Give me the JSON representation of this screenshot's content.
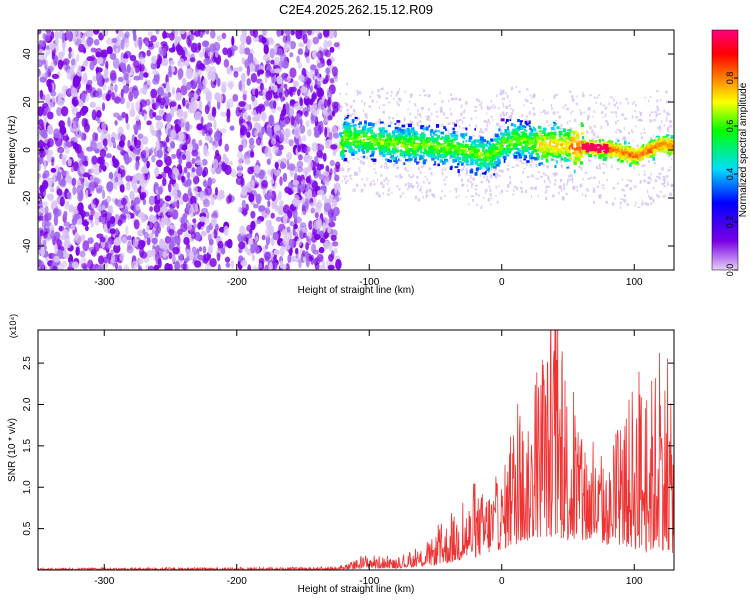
{
  "figure": {
    "title": "C2E4.2025.262.15.12.R09"
  },
  "chart_data": [
    {
      "type": "heatmap",
      "title": "C2E4.2025.262.15.12.R09",
      "xlabel": "Height of straight line (km)",
      "ylabel": "Frequency (Hz)",
      "xlim": [
        -350,
        130
      ],
      "ylim": [
        -50,
        50
      ],
      "xticks": [
        -300,
        -200,
        -100,
        0,
        100
      ],
      "yticks": [
        -40,
        -20,
        0,
        20,
        40
      ],
      "colorbar": {
        "label": "Normalized spectral amplitude",
        "range": [
          0,
          1
        ],
        "ticks": [
          0.0,
          0.2,
          0.4,
          0.6,
          0.8
        ],
        "colors": [
          "#e6d2f7",
          "#7b00e6",
          "#0000ff",
          "#00ddff",
          "#00ff00",
          "#ffff00",
          "#ff8000",
          "#ff0000",
          "#ff0080"
        ]
      },
      "regions": [
        {
          "name": "broadband noise",
          "x_range": [
            -350,
            -123
          ],
          "freq_range": [
            -50,
            50
          ],
          "amplitude": 0.15
        },
        {
          "name": "narrowband signal",
          "x_range": [
            -123,
            130
          ],
          "center_hz": [
            [
              -120,
              6
            ],
            [
              -80,
              3
            ],
            [
              -40,
              2
            ],
            [
              -10,
              -2
            ],
            [
              0,
              3
            ],
            [
              10,
              5
            ],
            [
              30,
              3
            ],
            [
              60,
              2
            ],
            [
              80,
              1
            ],
            [
              100,
              -2
            ],
            [
              120,
              3
            ],
            [
              130,
              2
            ]
          ],
          "amplitude": 0.9
        }
      ]
    },
    {
      "type": "line",
      "xlabel": "Height of straight line (km)",
      "ylabel": "SNR (10 * v/v)",
      "y_multiplier": "(x10⁴)",
      "xlim": [
        -350,
        130
      ],
      "ylim": [
        0,
        2.9
      ],
      "xticks": [
        -300,
        -200,
        -100,
        0,
        100
      ],
      "yticks": [
        0.5,
        1.0,
        1.5,
        2.0,
        2.5
      ],
      "series": [
        {
          "name": "SNR",
          "color": "#ee3333",
          "envelope": {
            "x": [
              -350,
              -150,
              -120,
              -100,
              -80,
              -60,
              -40,
              -20,
              0,
              10,
              20,
              30,
              40,
              50,
              60,
              70,
              80,
              90,
              100,
              110,
              120,
              130
            ],
            "upper": [
              0.02,
              0.03,
              0.05,
              0.2,
              0.12,
              0.25,
              0.6,
              0.9,
              1.1,
              1.9,
              1.7,
              2.6,
              2.9,
              2.2,
              1.6,
              1.4,
              1.2,
              1.6,
              2.4,
              2.2,
              2.7,
              1.8
            ],
            "lower": [
              0.0,
              0.0,
              0.0,
              0.02,
              0.02,
              0.04,
              0.08,
              0.15,
              0.25,
              0.3,
              0.35,
              0.4,
              0.4,
              0.35,
              0.3,
              0.35,
              0.3,
              0.3,
              0.25,
              0.2,
              0.25,
              0.2
            ]
          }
        }
      ]
    }
  ]
}
